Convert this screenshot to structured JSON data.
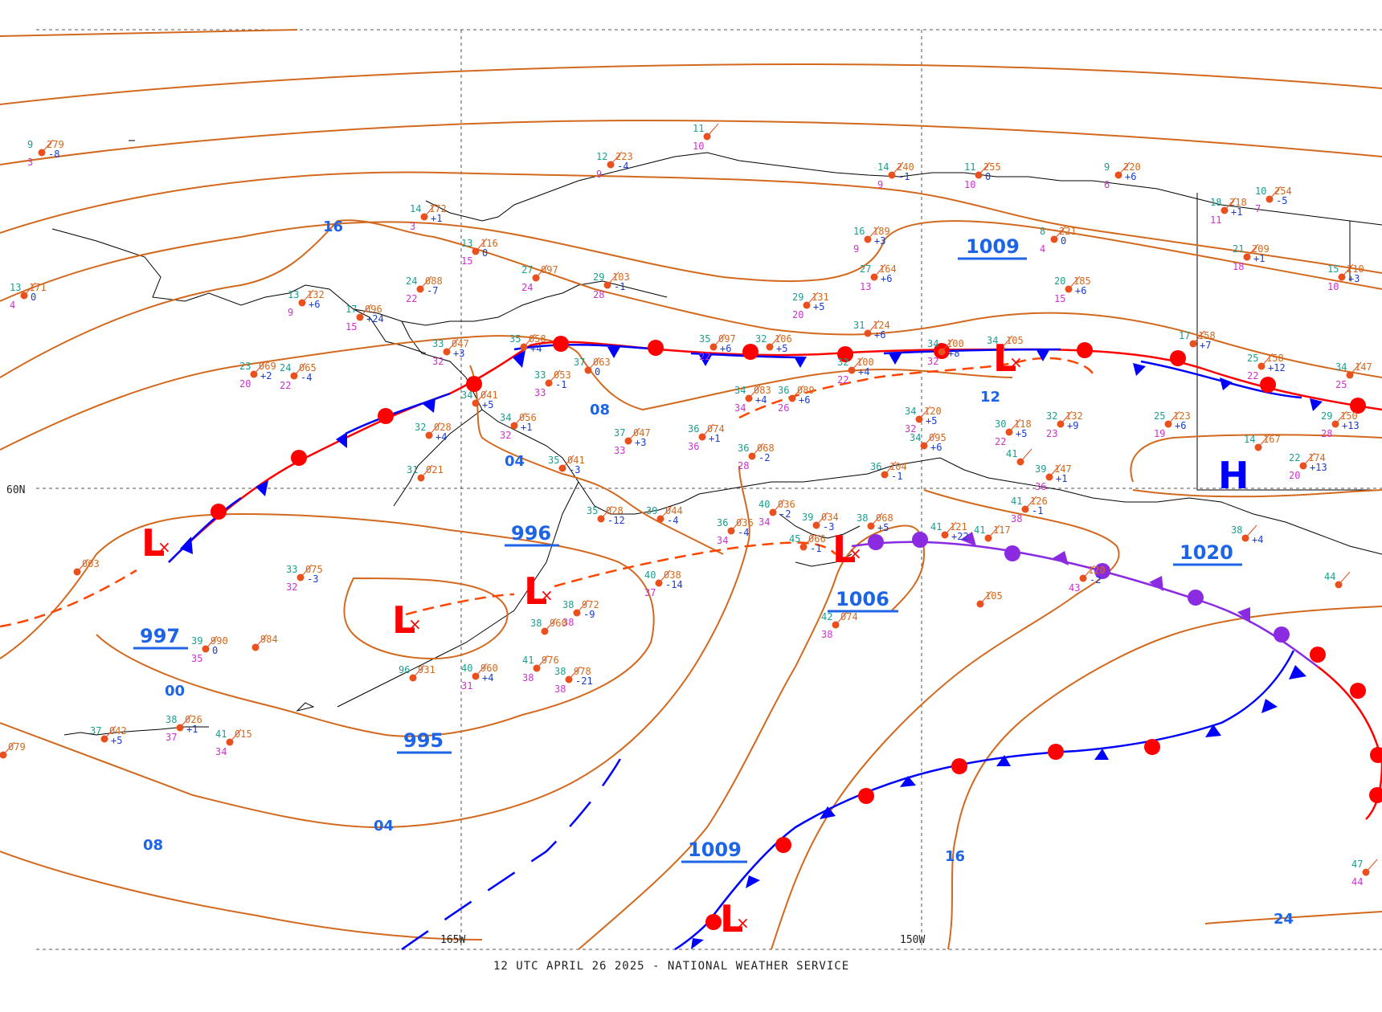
{
  "footer": "12 UTC APRIL 26 2025 - NATIONAL WEATHER SERVICE",
  "axes": {
    "lat_label": "60N",
    "lon_labels": [
      "165W",
      "150W"
    ]
  },
  "isobar_labels": [
    "16",
    "08",
    "04",
    "00",
    "08",
    "04",
    "12",
    "16",
    "24"
  ],
  "pressure_labels": [
    "1009",
    "996",
    "997",
    "995",
    "1006",
    "1020",
    "1009"
  ],
  "system_letters": {
    "low": "L",
    "high": "H"
  },
  "stations": [
    {
      "t": "9",
      "p": "279",
      "d": "3",
      "tend": "-8"
    },
    {
      "t": "11",
      "p": "",
      "d": "10",
      "tend": ""
    },
    {
      "t": "12",
      "p": "223",
      "d": "9",
      "tend": "-4"
    },
    {
      "t": "14",
      "p": "240",
      "d": "9",
      "tend": "-1"
    },
    {
      "t": "11",
      "p": "255",
      "d": "10",
      "tend": "0"
    },
    {
      "t": "9",
      "p": "220",
      "d": "6",
      "tend": "+6"
    },
    {
      "t": "14",
      "p": "172",
      "d": "3",
      "tend": "+1"
    },
    {
      "t": "13",
      "p": "116",
      "d": "15",
      "tend": "0"
    },
    {
      "t": "13",
      "p": "132",
      "d": "9",
      "tend": "+6"
    },
    {
      "t": "17",
      "p": "096",
      "d": "15",
      "tend": "+24"
    },
    {
      "t": "24",
      "p": "088",
      "d": "22",
      "tend": "-7"
    },
    {
      "t": "27",
      "p": "097",
      "d": "24",
      "tend": ""
    },
    {
      "t": "29",
      "p": "103",
      "d": "28",
      "tend": "-1"
    },
    {
      "t": "16",
      "p": "189",
      "d": "9",
      "tend": "+3"
    },
    {
      "t": "27",
      "p": "164",
      "d": "13",
      "tend": "+6"
    },
    {
      "t": "8",
      "p": "221",
      "d": "4",
      "tend": "0"
    },
    {
      "t": "20",
      "p": "185",
      "d": "15",
      "tend": "+6"
    },
    {
      "t": "29",
      "p": "131",
      "d": "20",
      "tend": "+5"
    },
    {
      "t": "31",
      "p": "124",
      "d": "",
      "tend": "+6"
    },
    {
      "t": "18",
      "p": "218",
      "d": "11",
      "tend": "+1"
    },
    {
      "t": "10",
      "p": "254",
      "d": "7",
      "tend": "-5"
    },
    {
      "t": "21",
      "p": "209",
      "d": "18",
      "tend": "+1"
    },
    {
      "t": "15",
      "p": "210",
      "d": "10",
      "tend": "+3"
    },
    {
      "t": "33",
      "p": "047",
      "d": "32",
      "tend": "+3"
    },
    {
      "t": "35",
      "p": "058",
      "d": "",
      "tend": "+4"
    },
    {
      "t": "35",
      "p": "097",
      "d": "22",
      "tend": "+6"
    },
    {
      "t": "32",
      "p": "106",
      "d": "",
      "tend": "+5"
    },
    {
      "t": "23",
      "p": "069",
      "d": "20",
      "tend": "+2"
    },
    {
      "t": "24",
      "p": "065",
      "d": "22",
      "tend": "-4"
    },
    {
      "t": "37",
      "p": "063",
      "d": "",
      "tend": "0"
    },
    {
      "t": "33",
      "p": "053",
      "d": "33",
      "tend": "-1"
    },
    {
      "t": "32",
      "p": "100",
      "d": "22",
      "tend": "+4"
    },
    {
      "t": "34",
      "p": "100",
      "d": "32",
      "tend": "+8"
    },
    {
      "t": "34",
      "p": "105",
      "d": "",
      "tend": ""
    },
    {
      "t": "17",
      "p": "158",
      "d": "",
      "tend": "+7"
    },
    {
      "t": "25",
      "p": "158",
      "d": "22",
      "tend": "+12"
    },
    {
      "t": "34",
      "p": "083",
      "d": "34",
      "tend": "+4"
    },
    {
      "t": "36",
      "p": "089",
      "d": "26",
      "tend": "+6"
    },
    {
      "t": "34",
      "p": "120",
      "d": "32",
      "tend": "+5"
    },
    {
      "t": "30",
      "p": "118",
      "d": "22",
      "tend": "+5"
    },
    {
      "t": "32",
      "p": "132",
      "d": "23",
      "tend": "+9"
    },
    {
      "t": "25",
      "p": "123",
      "d": "19",
      "tend": "+6"
    },
    {
      "t": "29",
      "p": "150",
      "d": "28",
      "tend": "+13"
    },
    {
      "t": "34",
      "p": "041",
      "d": "",
      "tend": "+5"
    },
    {
      "t": "34",
      "p": "056",
      "d": "32",
      "tend": "+1"
    },
    {
      "t": "32",
      "p": "028",
      "d": "",
      "tend": "+4"
    },
    {
      "t": "37",
      "p": "047",
      "d": "33",
      "tend": "+3"
    },
    {
      "t": "36",
      "p": "074",
      "d": "36",
      "tend": "+1"
    },
    {
      "t": "36",
      "p": "068",
      "d": "28",
      "tend": "-2"
    },
    {
      "t": "35",
      "p": "041",
      "d": "",
      "tend": "-3"
    },
    {
      "t": "31",
      "p": "021",
      "d": "",
      "tend": ""
    },
    {
      "t": "34",
      "p": "095",
      "d": "",
      "tend": "+6"
    },
    {
      "t": "41",
      "p": "",
      "d": "",
      "tend": ""
    },
    {
      "t": "14",
      "p": "167",
      "d": "",
      "tend": ""
    },
    {
      "t": "22",
      "p": "174",
      "d": "20",
      "tend": "+13"
    },
    {
      "t": "39",
      "p": "147",
      "d": "36",
      "tend": "+1"
    },
    {
      "t": "36",
      "p": "104",
      "d": "",
      "tend": "-1"
    },
    {
      "t": "35",
      "p": "028",
      "d": "",
      "tend": "-12"
    },
    {
      "t": "39",
      "p": "044",
      "d": "",
      "tend": "-4"
    },
    {
      "t": "36",
      "p": "036",
      "d": "34",
      "tend": "-4"
    },
    {
      "t": "40",
      "p": "036",
      "d": "34",
      "tend": "-2"
    },
    {
      "t": "39",
      "p": "034",
      "d": "",
      "tend": "-3"
    },
    {
      "t": "38",
      "p": "068",
      "d": "",
      "tend": "+5"
    },
    {
      "t": "41",
      "p": "121",
      "d": "",
      "tend": "+22"
    },
    {
      "t": "41",
      "p": "117",
      "d": "",
      "tend": ""
    },
    {
      "t": "41",
      "p": "126",
      "d": "38",
      "tend": "-1"
    },
    {
      "t": "38",
      "p": "",
      "d": "",
      "tend": "+4"
    },
    {
      "t": "33",
      "p": "075",
      "d": "32",
      "tend": "-3"
    },
    {
      "t": "40",
      "p": "038",
      "d": "37",
      "tend": "-14"
    },
    {
      "t": "45",
      "p": "066",
      "d": "",
      "tend": "-1"
    },
    {
      "t": "39",
      "p": "990",
      "d": "35",
      "tend": "0"
    },
    {
      "t": "",
      "p": "984",
      "d": "",
      "tend": ""
    },
    {
      "t": "38",
      "p": "972",
      "d": "38",
      "tend": "-9"
    },
    {
      "t": "38",
      "p": "960",
      "d": "",
      "tend": ""
    },
    {
      "t": "41",
      "p": "976",
      "d": "38",
      "tend": ""
    },
    {
      "t": "38",
      "p": "978",
      "d": "38",
      "tend": "-21"
    },
    {
      "t": "40",
      "p": "960",
      "d": "31",
      "tend": "+4"
    },
    {
      "t": "96",
      "p": "931",
      "d": "",
      "tend": ""
    },
    {
      "t": "37",
      "p": "042",
      "d": "",
      "tend": "+5"
    },
    {
      "t": "38",
      "p": "026",
      "d": "37",
      "tend": "+1"
    },
    {
      "t": "41",
      "p": "015",
      "d": "34",
      "tend": ""
    },
    {
      "t": "",
      "p": "079",
      "d": "",
      "tend": ""
    },
    {
      "t": "",
      "p": "003",
      "d": "",
      "tend": ""
    },
    {
      "t": "42",
      "p": "074",
      "d": "38",
      "tend": ""
    },
    {
      "t": "",
      "p": "105",
      "d": "",
      "tend": ""
    },
    {
      "t": "",
      "p": "120",
      "d": "43",
      "tend": "-2"
    },
    {
      "t": "13",
      "p": "171",
      "d": "4",
      "tend": "0"
    },
    {
      "t": "47",
      "p": "",
      "d": "44",
      "tend": ""
    },
    {
      "t": "44",
      "p": "",
      "d": "",
      "tend": ""
    },
    {
      "t": "34",
      "p": "147",
      "d": "25",
      "tend": ""
    }
  ]
}
